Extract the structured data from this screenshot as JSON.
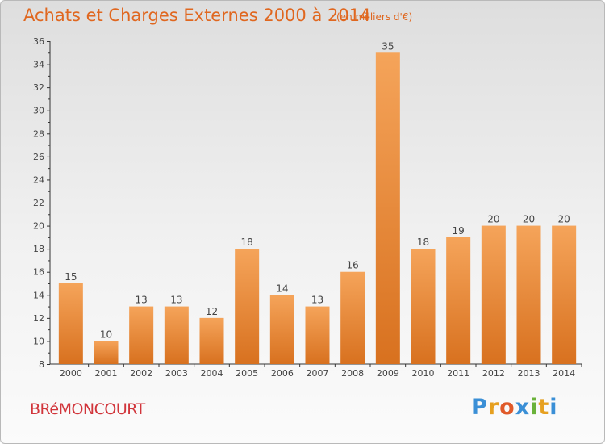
{
  "header": {
    "title": "Achats et Charges Externes 2000 à 2014",
    "unit": "(en milliers d'€)"
  },
  "footer": {
    "city": "BRéMONCOURT",
    "logo_letters": [
      "P",
      "r",
      "o",
      "x",
      "i",
      "t",
      "i"
    ],
    "logo_colors": [
      "#3a8fd6",
      "#e6a020",
      "#e05a2a",
      "#3a8fd6",
      "#6ab23a",
      "#e6a020",
      "#3a8fd6"
    ]
  },
  "colors": {
    "bar_top": "#f5a45a",
    "bar_bottom": "#d8711f",
    "text": "#444444",
    "title": "#e0671f"
  },
  "chart_data": {
    "type": "bar",
    "title": "Achats et Charges Externes 2000 à 2014",
    "xlabel": "",
    "ylabel": "",
    "categories": [
      "2000",
      "2001",
      "2002",
      "2003",
      "2004",
      "2005",
      "2006",
      "2007",
      "2008",
      "2009",
      "2010",
      "2011",
      "2012",
      "2013",
      "2014"
    ],
    "values": [
      15,
      10,
      13,
      13,
      12,
      18,
      14,
      13,
      16,
      35,
      18,
      19,
      20,
      20,
      20
    ],
    "ylim": [
      8,
      36
    ],
    "yticks": [
      8,
      10,
      12,
      14,
      16,
      18,
      20,
      22,
      24,
      26,
      28,
      30,
      32,
      34,
      36
    ],
    "grid": false,
    "legend": "none"
  }
}
